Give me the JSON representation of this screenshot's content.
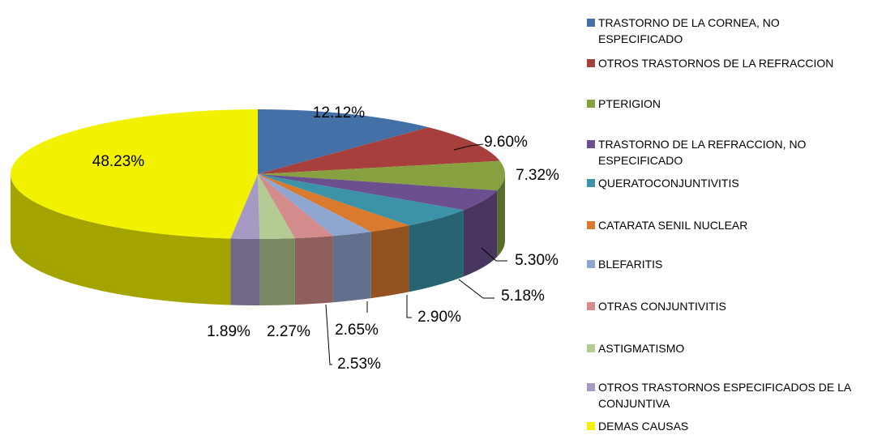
{
  "chart_data": {
    "type": "pie3d",
    "categories": [
      "TRASTORNO DE LA CORNEA, NO ESPECIFICADO",
      "OTROS TRASTORNOS DE LA REFRACCION",
      "PTERIGION",
      "TRASTORNO DE LA REFRACCION, NO ESPECIFICADO",
      "QUERATOCONJUNTIVITIS",
      "CATARATA SENIL NUCLEAR",
      "BLEFARITIS",
      "OTRAS CONJUNTIVITIS",
      "ASTIGMATISMO",
      "OTROS TRASTORNOS ESPECIFICADOS DE LA CONJUNTIVA",
      "DEMAS CAUSAS"
    ],
    "values": [
      12.12,
      9.6,
      7.32,
      5.3,
      5.18,
      2.9,
      2.65,
      2.53,
      2.27,
      1.89,
      48.23
    ],
    "value_labels": [
      "12.12%",
      "9.60%",
      "7.32%",
      "5.30%",
      "5.18%",
      "2.90%",
      "2.65%",
      "2.53%",
      "2.27%",
      "1.89%",
      "48.23%"
    ],
    "colors": [
      "#4470a8",
      "#a73f3c",
      "#87a140",
      "#6b4f8e",
      "#3c93a8",
      "#d97a2e",
      "#8fa6d0",
      "#d38c8b",
      "#b4cb93",
      "#a69ac4",
      "#f2f200"
    ],
    "legend": "right"
  }
}
